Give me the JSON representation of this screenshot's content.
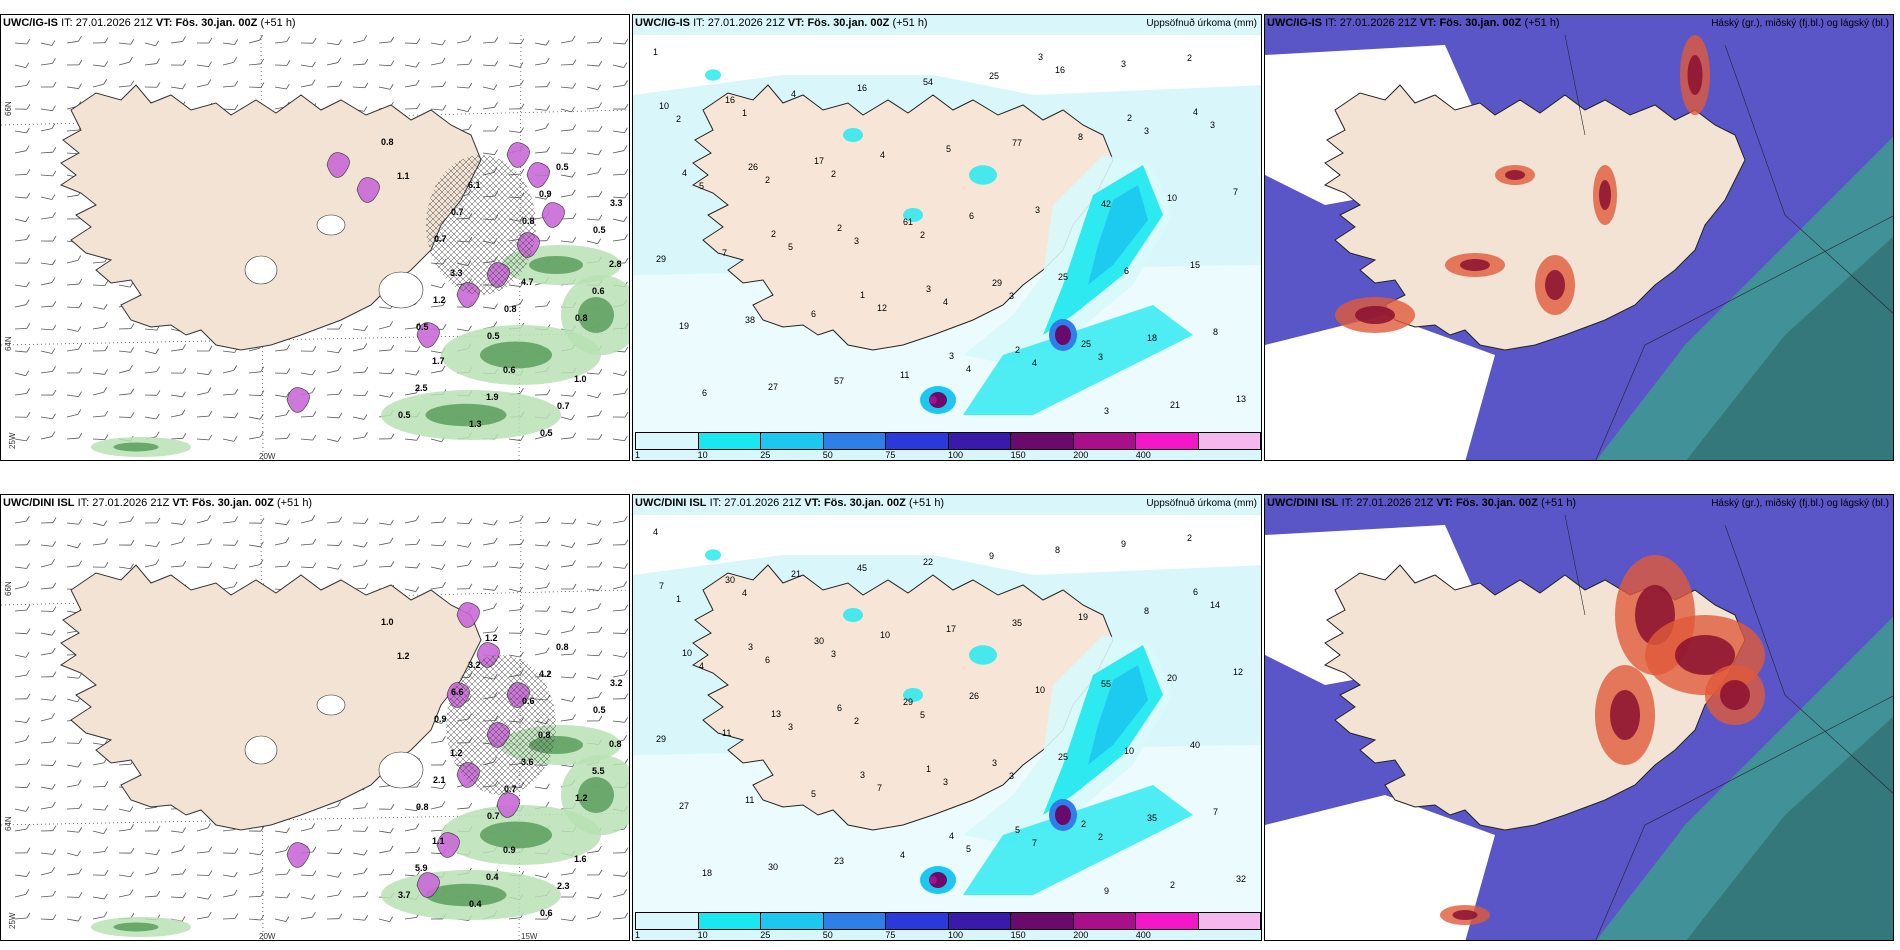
{
  "panels": [
    {
      "model": "UWC/IG-IS",
      "it_label": "IT:",
      "it_value": "27.01.2026 21Z",
      "vt_label": "VT:",
      "vt_value": "Fös. 30.jan. 00Z",
      "lead": "(+51 h)",
      "right_title": "",
      "type": "wind",
      "axis": {
        "lat66": "66N",
        "lat64": "64N",
        "lon25": "25W",
        "lon20": "20W",
        "lon15": ""
      },
      "values": [
        "0.8",
        "0.7",
        "0.5",
        "0.5",
        "0.5",
        "0.5",
        "1.3",
        "0.8",
        "0.8",
        "0.5",
        "0.7",
        "0.8",
        "0.7",
        "3.3",
        "1.2",
        "1.9",
        "0.9",
        "0.6",
        "2.5",
        "6.1",
        "4.7",
        "1.0",
        "1.1",
        "3.3",
        "0.6",
        "0.5",
        "2.8",
        "1.7"
      ],
      "colors": {
        "land": "#f2e3d4",
        "snow": "#c86ad6",
        "rain": "#5c9e5c"
      }
    },
    {
      "model": "UWC/IG-IS",
      "it_label": "IT:",
      "it_value": "27.01.2026 21Z",
      "vt_label": "VT:",
      "vt_value": "Fös. 30.jan. 00Z",
      "lead": "(+51 h)",
      "right_title": "Uppsöfnuð úrkoma (mm)",
      "type": "precip",
      "values": [
        "1",
        "1",
        "2",
        "2",
        "3",
        "3",
        "2",
        "2",
        "2",
        "3",
        "4",
        "4",
        "3",
        "3",
        "5",
        "5",
        "12",
        "4",
        "16",
        "3",
        "7",
        "7",
        "6",
        "11",
        "25",
        "8",
        "10",
        "29",
        "38",
        "57",
        "54",
        "77",
        "42",
        "15",
        "19",
        "27",
        "16",
        "5",
        "3",
        "6",
        "8",
        "6",
        "4",
        "4",
        "6",
        "25",
        "18",
        "13",
        "16",
        "17",
        "61",
        "29",
        "25",
        "21",
        "10",
        "26",
        "2",
        "3",
        "2",
        "3",
        "4",
        "4",
        "2",
        "1",
        "3",
        "3",
        "2"
      ],
      "colorbar": {
        "colors": [
          "#d8f8fb",
          "#19e8f0",
          "#1cc8f0",
          "#2e7fe8",
          "#2a3ad8",
          "#3a1aa8",
          "#6a0a6a",
          "#a8108a",
          "#f018c8",
          "#f4b8ee"
        ],
        "ticks": [
          "1",
          "10",
          "25",
          "50",
          "75",
          "100",
          "150",
          "200",
          "400"
        ]
      }
    },
    {
      "model": "UWC/IG-IS",
      "it_label": "IT:",
      "it_value": "27.01.2026 21Z",
      "vt_label": "VT:",
      "vt_value": "Fös. 30.jan. 00Z",
      "lead": "(+51 h)",
      "right_title": "Háský (gr.), miðský (fj.bl.) og lágský (bl.)",
      "type": "cloud"
    },
    {
      "model": "UWC/DINI ISL",
      "it_label": "IT:",
      "it_value": "27.01.2026 21Z",
      "vt_label": "VT:",
      "vt_value": "Fös. 30.jan. 00Z",
      "lead": "(+51 h)",
      "right_title": "",
      "type": "wind",
      "axis": {
        "lat66": "66N",
        "lat64": "64N",
        "lon25": "25W",
        "lon20": "20W",
        "lon15": "15W"
      },
      "values": [
        "1.0",
        "0.9",
        "0.7",
        "0.6",
        "0.5",
        "0.8",
        "0.4",
        "0.6",
        "1.2",
        "3.7",
        "6.6",
        "0.7",
        "2.3",
        "3.2",
        "2.1",
        "0.4",
        "4.2",
        "5.5",
        "5.9",
        "3.2",
        "3.6",
        "1.6",
        "1.2",
        "1.2",
        "0.9",
        "0.8",
        "0.8",
        "1.1",
        "1.2",
        "0.8"
      ],
      "colors": {
        "land": "#f2e3d4",
        "snow": "#c86ad6",
        "rain": "#5c9e5c"
      }
    },
    {
      "model": "UWC/DINI ISL",
      "it_label": "IT:",
      "it_value": "27.01.2026 21Z",
      "vt_label": "VT:",
      "vt_value": "Fös. 30.jan. 00Z",
      "lead": "(+51 h)",
      "right_title": "Uppsöfnuð úrkoma (mm)",
      "type": "precip",
      "values": [
        "4",
        "4",
        "3",
        "5",
        "3",
        "2",
        "2",
        "1",
        "6",
        "2",
        "3",
        "7",
        "9",
        "14",
        "4",
        "3",
        "7",
        "5",
        "8",
        "8",
        "12",
        "11",
        "5",
        "4",
        "9",
        "19",
        "20",
        "29",
        "11",
        "23",
        "22",
        "35",
        "55",
        "40",
        "27",
        "30",
        "45",
        "17",
        "10",
        "10",
        "7",
        "18",
        "21",
        "10",
        "26",
        "25",
        "35",
        "32",
        "30",
        "30",
        "29",
        "3",
        "2",
        "2",
        "7",
        "3",
        "6",
        "1",
        "5",
        "9",
        "6",
        "10",
        "13",
        "3",
        "4"
      ],
      "colorbar": {
        "colors": [
          "#d8f8fb",
          "#19e8f0",
          "#1cc8f0",
          "#2e7fe8",
          "#2a3ad8",
          "#3a1aa8",
          "#6a0a6a",
          "#a8108a",
          "#f018c8",
          "#f4b8ee"
        ],
        "ticks": [
          "1",
          "10",
          "25",
          "50",
          "75",
          "100",
          "150",
          "200",
          "400"
        ]
      }
    },
    {
      "model": "UWC/DINI ISL",
      "it_label": "IT:",
      "it_value": "27.01.2026 21Z",
      "vt_label": "VT:",
      "vt_value": "Fös. 30.jan. 00Z",
      "lead": "(+51 h)",
      "right_title": "Háský (gr.), miðský (fj.bl.) og lágský (bl.)",
      "type": "cloud"
    }
  ]
}
